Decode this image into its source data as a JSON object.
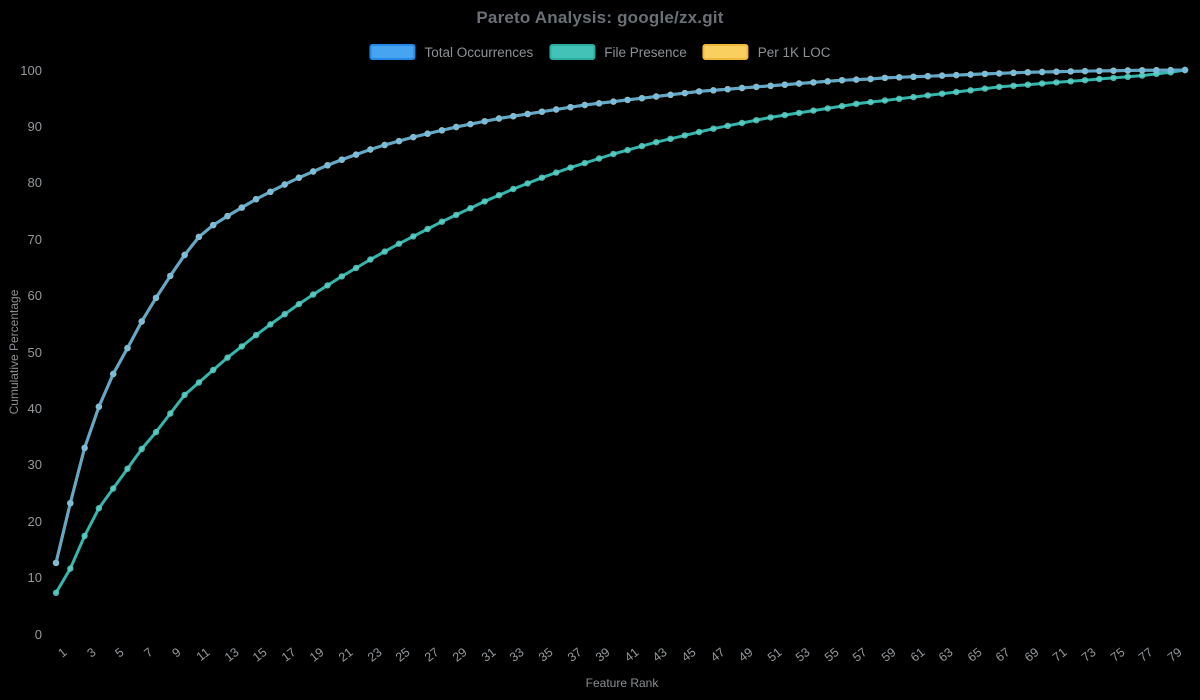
{
  "chart_data": {
    "type": "line",
    "title": "Pareto Analysis: google/zx.git",
    "xlabel": "Feature Rank",
    "ylabel": "Cumulative Percentage",
    "background": "#000000",
    "grid": false,
    "legend_position": "top",
    "ylim": [
      0,
      100
    ],
    "y_ticks": [
      0,
      10,
      20,
      30,
      40,
      50,
      60,
      70,
      80,
      90,
      100
    ],
    "x_ticks": [
      1,
      3,
      5,
      7,
      9,
      11,
      13,
      15,
      17,
      19,
      21,
      23,
      25,
      27,
      29,
      31,
      33,
      35,
      37,
      39,
      41,
      43,
      45,
      47,
      49,
      51,
      53,
      55,
      57,
      59,
      61,
      63,
      65,
      67,
      69,
      71,
      73,
      75,
      77,
      79
    ],
    "x": [
      1,
      2,
      3,
      4,
      5,
      6,
      7,
      8,
      9,
      10,
      11,
      12,
      13,
      14,
      15,
      16,
      17,
      18,
      19,
      20,
      21,
      22,
      23,
      24,
      25,
      26,
      27,
      28,
      29,
      30,
      31,
      32,
      33,
      34,
      35,
      36,
      37,
      38,
      39,
      40,
      41,
      42,
      43,
      44,
      45,
      46,
      47,
      48,
      49,
      50,
      51,
      52,
      53,
      54,
      55,
      56,
      57,
      58,
      59,
      60,
      61,
      62,
      63,
      64,
      65,
      66,
      67,
      68,
      69,
      70,
      71,
      72,
      73,
      74,
      75,
      76,
      77,
      78,
      79,
      80
    ],
    "series": [
      {
        "name": "Total Occurrences",
        "line_color": "#5aa6d0",
        "marker_color": "#7cc0e0",
        "legend_fill": "#47a4f1",
        "legend_border": "#2289e6",
        "values": [
          12.6,
          23.2,
          33.0,
          40.3,
          46.1,
          50.7,
          55.4,
          59.6,
          63.5,
          67.2,
          70.4,
          72.5,
          74.1,
          75.6,
          77.1,
          78.4,
          79.7,
          80.9,
          82.0,
          83.1,
          84.1,
          85.0,
          85.9,
          86.7,
          87.4,
          88.1,
          88.7,
          89.3,
          89.9,
          90.4,
          90.9,
          91.4,
          91.8,
          92.2,
          92.6,
          93.0,
          93.4,
          93.8,
          94.1,
          94.4,
          94.7,
          95.0,
          95.3,
          95.6,
          95.9,
          96.2,
          96.4,
          96.6,
          96.8,
          97.0,
          97.2,
          97.4,
          97.6,
          97.8,
          98.0,
          98.2,
          98.3,
          98.4,
          98.6,
          98.7,
          98.8,
          98.9,
          99.0,
          99.1,
          99.2,
          99.3,
          99.4,
          99.5,
          99.6,
          99.65,
          99.7,
          99.75,
          99.8,
          99.84,
          99.88,
          99.91,
          99.94,
          99.96,
          99.98,
          100.0
        ]
      },
      {
        "name": "File Presence",
        "line_color": "#39bfb4",
        "marker_color": "#5ad0c5",
        "legend_fill": "#43c3b8",
        "legend_border": "#2aada2",
        "values": [
          7.3,
          11.6,
          17.4,
          22.3,
          25.8,
          29.3,
          32.8,
          35.8,
          39.1,
          42.4,
          44.6,
          46.8,
          49.0,
          51.0,
          53.0,
          54.9,
          56.7,
          58.5,
          60.2,
          61.8,
          63.4,
          64.9,
          66.4,
          67.8,
          69.2,
          70.5,
          71.8,
          73.1,
          74.3,
          75.5,
          76.7,
          77.8,
          78.9,
          79.9,
          80.9,
          81.8,
          82.7,
          83.5,
          84.3,
          85.1,
          85.8,
          86.5,
          87.2,
          87.8,
          88.4,
          89.0,
          89.6,
          90.1,
          90.6,
          91.1,
          91.6,
          92.0,
          92.4,
          92.8,
          93.2,
          93.6,
          94.0,
          94.3,
          94.6,
          94.9,
          95.2,
          95.5,
          95.8,
          96.1,
          96.4,
          96.7,
          97.0,
          97.2,
          97.4,
          97.6,
          97.8,
          98.0,
          98.2,
          98.4,
          98.6,
          98.8,
          99.0,
          99.3,
          99.6,
          100.0
        ]
      },
      {
        "name": "Per 1K LOC",
        "line_color": "#f6c957",
        "marker_color": "#f8d77c",
        "legend_fill": "#f9d05f",
        "legend_border": "#f0b83b",
        "hidden_behind": "Total Occurrences",
        "values": [
          12.6,
          23.2,
          33.0,
          40.3,
          46.1,
          50.7,
          55.4,
          59.6,
          63.5,
          67.2,
          70.4,
          72.5,
          74.1,
          75.6,
          77.1,
          78.4,
          79.7,
          80.9,
          82.0,
          83.1,
          84.1,
          85.0,
          85.9,
          86.7,
          87.4,
          88.1,
          88.7,
          89.3,
          89.9,
          90.4,
          90.9,
          91.4,
          91.8,
          92.2,
          92.6,
          93.0,
          93.4,
          93.8,
          94.1,
          94.4,
          94.7,
          95.0,
          95.3,
          95.6,
          95.9,
          96.2,
          96.4,
          96.6,
          96.8,
          97.0,
          97.2,
          97.4,
          97.6,
          97.8,
          98.0,
          98.2,
          98.3,
          98.4,
          98.6,
          98.7,
          98.8,
          98.9,
          99.0,
          99.1,
          99.2,
          99.3,
          99.4,
          99.5,
          99.6,
          99.65,
          99.7,
          99.75,
          99.8,
          99.84,
          99.88,
          99.91,
          99.94,
          99.96,
          99.98,
          100.0
        ]
      }
    ]
  }
}
